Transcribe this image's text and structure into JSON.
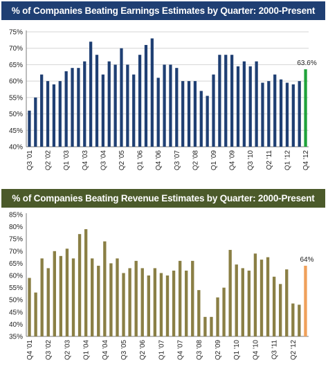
{
  "chart_data": [
    {
      "type": "bar",
      "title": "% of Companies Beating Earnings Estimates by Quarter: 2000-Present",
      "ylim": [
        40,
        75
      ],
      "yticks": [
        "40%",
        "45%",
        "50%",
        "55%",
        "60%",
        "65%",
        "70%",
        "75%"
      ],
      "ytick_values": [
        40,
        45,
        50,
        55,
        60,
        65,
        70,
        75
      ],
      "xtick_labels": [
        "Q3 '01",
        "Q2 '02",
        "Q1 '03",
        "Q4 '03",
        "Q3 '04",
        "Q2 '05",
        "Q1 '06",
        "Q4 '06",
        "Q3 '07",
        "Q2 '08",
        "Q1 '09",
        "Q4 '09",
        "Q3 '10",
        "Q2 '11",
        "Q1 '12",
        "Q4 '12"
      ],
      "xtick_every": 3,
      "values": [
        51,
        55,
        62,
        60,
        59,
        60,
        63,
        64,
        64,
        66,
        72,
        68,
        62,
        66,
        65,
        70,
        65,
        62,
        68,
        71,
        73,
        61,
        65,
        65,
        64,
        60,
        60,
        60,
        57,
        55.5,
        62,
        68,
        68,
        68,
        64.5,
        66,
        64.5,
        66,
        59.5,
        60,
        62,
        60.5,
        59.5,
        59,
        60,
        63.6
      ],
      "last_label": "63.6%",
      "bar_color": "#1f3f73",
      "highlight_color": "#1fa23a",
      "grid": true
    },
    {
      "type": "bar",
      "title": "% of Companies Beating Revenue Estimates by Quarter: 2000-Present",
      "ylim": [
        35,
        85
      ],
      "yticks": [
        "35%",
        "40%",
        "45%",
        "50%",
        "55%",
        "60%",
        "65%",
        "70%",
        "75%",
        "80%",
        "85%"
      ],
      "ytick_values": [
        35,
        40,
        45,
        50,
        55,
        60,
        65,
        70,
        75,
        80,
        85
      ],
      "xtick_labels": [
        "Q4 '01",
        "Q3 '02",
        "Q2 '03",
        "Q1 '04",
        "Q4 '04",
        "Q3 '05",
        "Q2 '06",
        "Q1 '07",
        "Q4 '07",
        "Q3 '08",
        "Q2 '09",
        "Q1 '10",
        "Q4 '10",
        "Q3 '11",
        "Q2 '12"
      ],
      "xtick_every": 3,
      "values": [
        59,
        53,
        67,
        63,
        70,
        68,
        71,
        67,
        77,
        79,
        67,
        64,
        74,
        65,
        67,
        61,
        63,
        66,
        63,
        60,
        63,
        61,
        60,
        62,
        66,
        62,
        66,
        54,
        43,
        43,
        51,
        55,
        70.5,
        64.5,
        63,
        62,
        69,
        66.5,
        67.5,
        59.5,
        56.5,
        62.5,
        48.5,
        48,
        64
      ],
      "last_label": "64%",
      "bar_color": "#8a7f45",
      "highlight_color": "#f0a05a",
      "grid": false
    }
  ]
}
